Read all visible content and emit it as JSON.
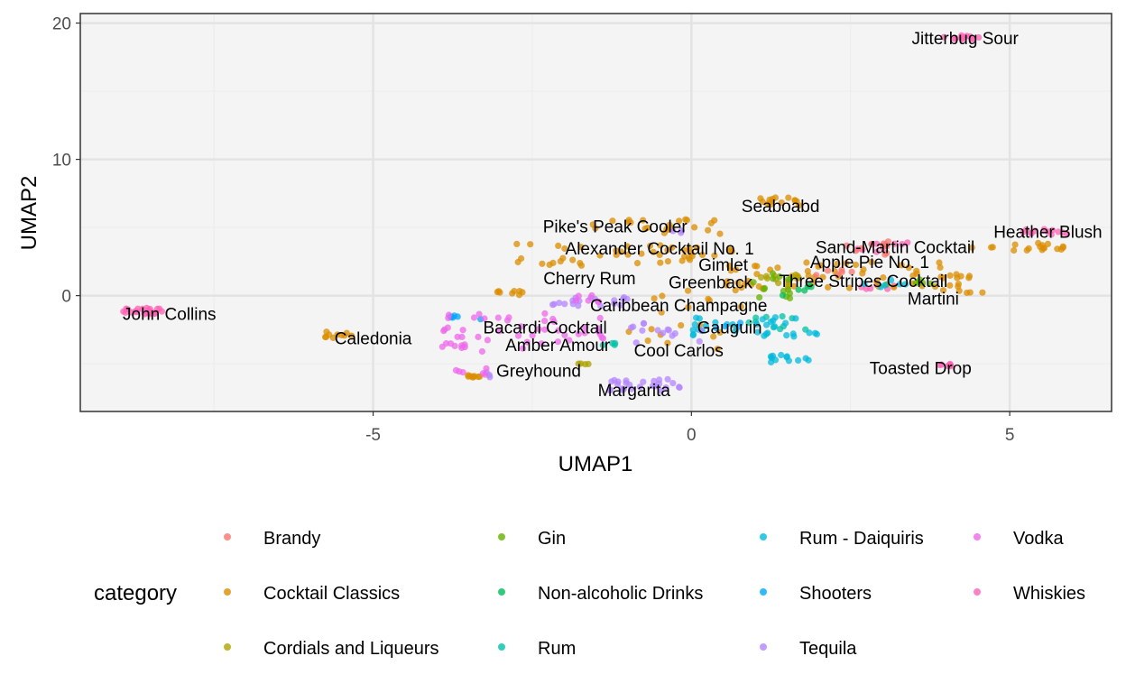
{
  "chart_data": {
    "type": "scatter",
    "xlabel": "UMAP1",
    "ylabel": "UMAP2",
    "xlim": [
      -9.6,
      6.6
    ],
    "ylim": [
      -8.5,
      20.7
    ],
    "x_ticks": [
      -5,
      0,
      5
    ],
    "y_ticks": [
      0,
      10,
      20
    ],
    "x_tick_labels": [
      "-5",
      "0",
      "5"
    ],
    "y_tick_labels": [
      "0",
      "10",
      "20"
    ],
    "grid": true,
    "legend_position": "bottom",
    "legend_title": "category",
    "categories": [
      {
        "name": "Brandy",
        "color": "#F8766D"
      },
      {
        "name": "Cocktail Classics",
        "color": "#DB8E00"
      },
      {
        "name": "Cordials and Liqueurs",
        "color": "#AEA200"
      },
      {
        "name": "Gin",
        "color": "#64B200"
      },
      {
        "name": "Non-alcoholic Drinks",
        "color": "#00BD5C"
      },
      {
        "name": "Rum",
        "color": "#00C1A7"
      },
      {
        "name": "Rum - Daiquiris",
        "color": "#00BADE"
      },
      {
        "name": "Shooters",
        "color": "#00A6FF"
      },
      {
        "name": "Tequila",
        "color": "#B385FF"
      },
      {
        "name": "Vodka",
        "color": "#EF67EB"
      },
      {
        "name": "Whiskies",
        "color": "#FF63B6"
      }
    ],
    "clusters": [
      {
        "category": "Whiskies",
        "x": [
          -9.0,
          -8.3
        ],
        "y": [
          -1.4,
          -0.9
        ],
        "n": 28
      },
      {
        "category": "Whiskies",
        "x": [
          3.95,
          4.65
        ],
        "y": [
          18.8,
          19.1
        ],
        "n": 12
      },
      {
        "category": "Whiskies",
        "x": [
          5.2,
          5.9
        ],
        "y": [
          4.2,
          4.9
        ],
        "n": 12
      },
      {
        "category": "Whiskies",
        "x": [
          2.6,
          3.6
        ],
        "y": [
          3.2,
          3.9
        ],
        "n": 10
      },
      {
        "category": "Whiskies",
        "x": [
          3.8,
          4.2
        ],
        "y": [
          -5.2,
          -5.0
        ],
        "n": 8
      },
      {
        "category": "Whiskies",
        "x": [
          2.6,
          3.2
        ],
        "y": [
          0.3,
          0.9
        ],
        "n": 6
      },
      {
        "category": "Cocktail Classics",
        "x": [
          -5.8,
          -5.3
        ],
        "y": [
          -3.1,
          -2.6
        ],
        "n": 10
      },
      {
        "category": "Cocktail Classics",
        "x": [
          1.0,
          1.9
        ],
        "y": [
          6.6,
          7.2
        ],
        "n": 14
      },
      {
        "category": "Cocktail Classics",
        "x": [
          -1.6,
          0.5
        ],
        "y": [
          4.5,
          5.6
        ],
        "n": 22
      },
      {
        "category": "Cocktail Classics",
        "x": [
          -2.9,
          0.7
        ],
        "y": [
          2.2,
          3.8
        ],
        "n": 45
      },
      {
        "category": "Cocktail Classics",
        "x": [
          0.5,
          4.2
        ],
        "y": [
          0.5,
          2.5
        ],
        "n": 60
      },
      {
        "category": "Cocktail Classics",
        "x": [
          4.4,
          5.9
        ],
        "y": [
          3.3,
          3.9
        ],
        "n": 18
      },
      {
        "category": "Cocktail Classics",
        "x": [
          3.9,
          4.7
        ],
        "y": [
          0.2,
          1.6
        ],
        "n": 12
      },
      {
        "category": "Cocktail Classics",
        "x": [
          -3.6,
          -3.3
        ],
        "y": [
          -6.0,
          -5.8
        ],
        "n": 8
      },
      {
        "category": "Cocktail Classics",
        "x": [
          -3.1,
          -2.6
        ],
        "y": [
          0.0,
          0.4
        ],
        "n": 8
      },
      {
        "category": "Cocktail Classics",
        "x": [
          -1.0,
          0.9
        ],
        "y": [
          -4.0,
          0.4
        ],
        "n": 20
      },
      {
        "category": "Brandy",
        "x": [
          2.3,
          3.1
        ],
        "y": [
          3.0,
          4.0
        ],
        "n": 10
      },
      {
        "category": "Brandy",
        "x": [
          1.8,
          2.6
        ],
        "y": [
          1.3,
          1.9
        ],
        "n": 6
      },
      {
        "category": "Cordials and Liqueurs",
        "x": [
          1.0,
          1.7
        ],
        "y": [
          0.8,
          1.6
        ],
        "n": 8
      },
      {
        "category": "Cordials and Liqueurs",
        "x": [
          -1.8,
          -1.5
        ],
        "y": [
          -5.1,
          -4.9
        ],
        "n": 4
      },
      {
        "category": "Gin",
        "x": [
          0.9,
          1.6
        ],
        "y": [
          -0.3,
          1.7
        ],
        "n": 14
      },
      {
        "category": "Gin",
        "x": [
          3.0,
          3.8
        ],
        "y": [
          0.7,
          1.5
        ],
        "n": 6
      },
      {
        "category": "Non-alcoholic Drinks",
        "x": [
          1.3,
          1.9
        ],
        "y": [
          0.0,
          0.9
        ],
        "n": 6
      },
      {
        "category": "Rum",
        "x": [
          0.9,
          1.9
        ],
        "y": [
          -2.5,
          -1.4
        ],
        "n": 10
      },
      {
        "category": "Rum",
        "x": [
          -1.4,
          -1.0
        ],
        "y": [
          -3.7,
          -3.4
        ],
        "n": 4
      },
      {
        "category": "Rum - Daiquiris",
        "x": [
          0.0,
          2.2
        ],
        "y": [
          -3.0,
          -1.5
        ],
        "n": 32
      },
      {
        "category": "Rum - Daiquiris",
        "x": [
          1.2,
          1.9
        ],
        "y": [
          -4.9,
          -4.3
        ],
        "n": 12
      },
      {
        "category": "Rum - Daiquiris",
        "x": [
          2.6,
          3.4
        ],
        "y": [
          0.6,
          1.2
        ],
        "n": 6
      },
      {
        "category": "Shooters",
        "x": [
          -3.9,
          -3.3
        ],
        "y": [
          -2.0,
          -1.3
        ],
        "n": 6
      },
      {
        "category": "Shooters",
        "x": [
          0.3,
          0.8
        ],
        "y": [
          -2.4,
          -1.9
        ],
        "n": 4
      },
      {
        "category": "Tequila",
        "x": [
          -1.3,
          -0.1
        ],
        "y": [
          -7.0,
          -6.1
        ],
        "n": 26
      },
      {
        "category": "Tequila",
        "x": [
          -3.0,
          -1.0
        ],
        "y": [
          -0.8,
          -0.1
        ],
        "n": 18
      },
      {
        "category": "Tequila",
        "x": [
          -1.0,
          0.2
        ],
        "y": [
          -3.5,
          -2.0
        ],
        "n": 14
      },
      {
        "category": "Tequila",
        "x": [
          -0.3,
          -0.1
        ],
        "y": [
          4.3,
          5.0
        ],
        "n": 3
      },
      {
        "category": "Tequila",
        "x": [
          -3.3,
          -3.1
        ],
        "y": [
          -6.0,
          -5.6
        ],
        "n": 3
      },
      {
        "category": "Vodka",
        "x": [
          -3.9,
          -1.2
        ],
        "y": [
          -4.1,
          -1.2
        ],
        "n": 45
      },
      {
        "category": "Vodka",
        "x": [
          -2.0,
          -1.2
        ],
        "y": [
          -0.5,
          0.1
        ],
        "n": 6
      },
      {
        "category": "Vodka",
        "x": [
          -3.9,
          -3.2
        ],
        "y": [
          -6.0,
          -5.3
        ],
        "n": 6
      },
      {
        "category": "Vodka",
        "x": [
          -4.0,
          -3.5
        ],
        "y": [
          -3.8,
          -3.4
        ],
        "n": 6
      }
    ],
    "annotations": [
      {
        "text": "Jitterbug Sour",
        "x": 4.3,
        "y": 18.9
      },
      {
        "text": "Seaboabd",
        "x": 1.4,
        "y": 6.6
      },
      {
        "text": "Pike's Peak Cooler",
        "x": -1.2,
        "y": 5.1
      },
      {
        "text": "Heather Blush",
        "x": 5.6,
        "y": 4.7
      },
      {
        "text": "Sand-Martin Cocktail",
        "x": 3.2,
        "y": 3.6
      },
      {
        "text": "Alexander Cocktail No. 1",
        "x": -0.5,
        "y": 3.5
      },
      {
        "text": "Apple Pie No. 1",
        "x": 2.8,
        "y": 2.5
      },
      {
        "text": "Gimlet",
        "x": 0.5,
        "y": 2.3
      },
      {
        "text": "Cherry Rum",
        "x": -1.6,
        "y": 1.3
      },
      {
        "text": "Greenback",
        "x": 0.3,
        "y": 1.0
      },
      {
        "text": "Three Stripes Cocktail",
        "x": 2.7,
        "y": 1.1
      },
      {
        "text": "Martini",
        "x": 3.8,
        "y": -0.2
      },
      {
        "text": "Caribbean Champagne",
        "x": -0.2,
        "y": -0.7
      },
      {
        "text": "John Collins",
        "x": -8.2,
        "y": -1.3
      },
      {
        "text": "Bacardi Cocktail",
        "x": -2.3,
        "y": -2.3
      },
      {
        "text": "Gauguin",
        "x": 0.6,
        "y": -2.3
      },
      {
        "text": "Caledonia",
        "x": -5.0,
        "y": -3.1
      },
      {
        "text": "Amber Amour",
        "x": -2.1,
        "y": -3.6
      },
      {
        "text": "Cool Carlos",
        "x": -0.2,
        "y": -4.0
      },
      {
        "text": "Toasted Drop",
        "x": 3.6,
        "y": -5.3
      },
      {
        "text": "Greyhound",
        "x": -2.4,
        "y": -5.5
      },
      {
        "text": "Margarita",
        "x": -0.9,
        "y": -6.9
      }
    ]
  }
}
